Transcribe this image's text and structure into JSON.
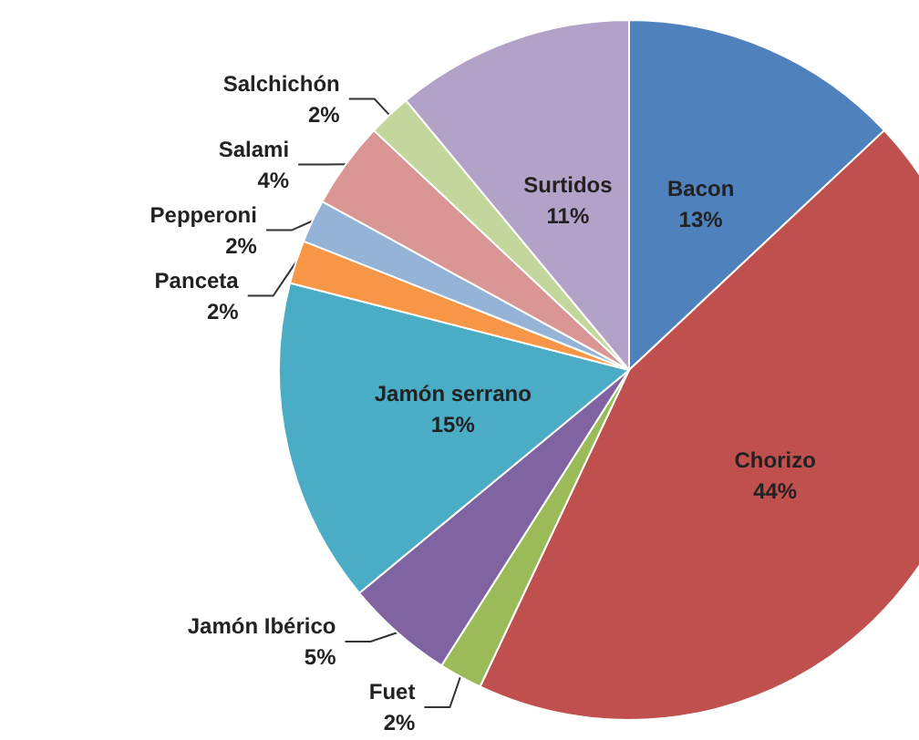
{
  "chart_data": {
    "type": "pie",
    "categories": [
      "Bacon",
      "Chorizo",
      "Fuet",
      "Jamón Ibérico",
      "Jamón serrano",
      "Panceta",
      "Pepperoni",
      "Salami",
      "Salchichón",
      "Surtidos"
    ],
    "values": [
      13,
      44,
      2,
      5,
      15,
      2,
      2,
      4,
      2,
      11
    ],
    "value_labels": [
      "13%",
      "44%",
      "2%",
      "5%",
      "15%",
      "2%",
      "2%",
      "4%",
      "2%",
      "11%"
    ],
    "colors": [
      "#4f81bd",
      "#c0504d",
      "#9bbb59",
      "#8064a2",
      "#4bacc6",
      "#f79646",
      "#95b3d7",
      "#d99694",
      "#c3d69b",
      "#b3a2c7"
    ],
    "legend": false
  }
}
